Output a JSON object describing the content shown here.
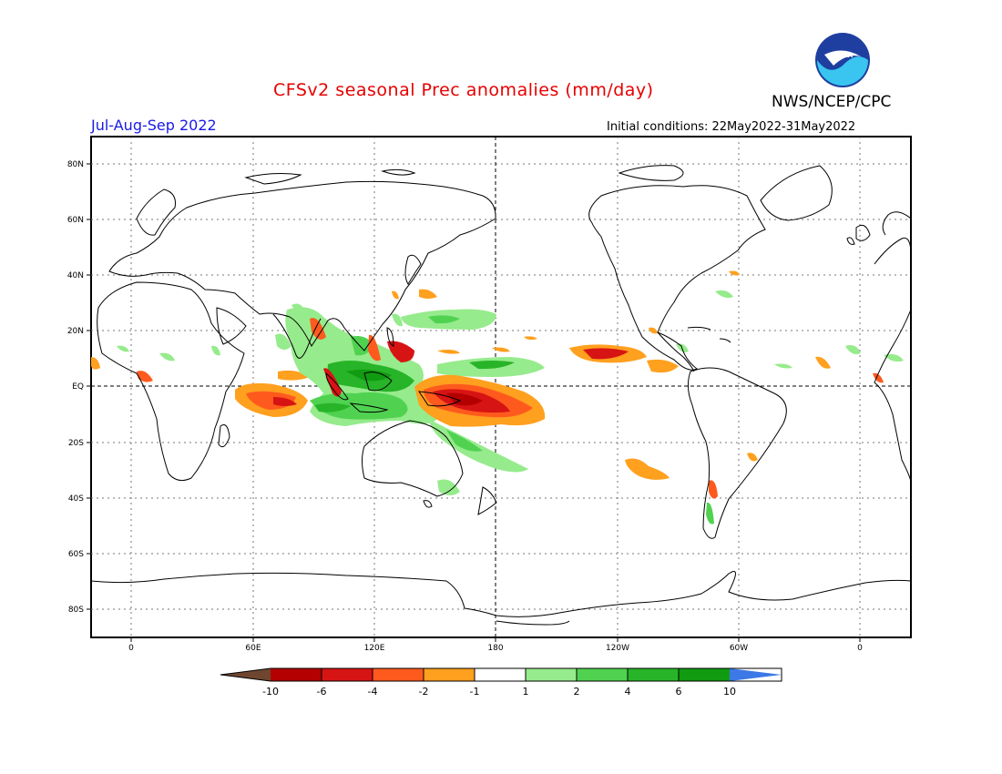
{
  "title": "CFSv2 seasonal Prec anomalies (mm/day)",
  "org": "NWS/NCEP/CPC",
  "logo_text": "NOAA",
  "period": "Jul-Aug-Sep 2022",
  "initial_conditions": "Initial conditions: 22May2022-31May2022",
  "lat_labels": [
    "80N",
    "60N",
    "40N",
    "20N",
    "EQ",
    "20S",
    "40S",
    "60S",
    "80S"
  ],
  "lon_labels": [
    "0",
    "60E",
    "120E",
    "180",
    "120W",
    "60W",
    "0"
  ],
  "colorbar": {
    "labels": [
      "-10",
      "-6",
      "-4",
      "-2",
      "-1",
      "1",
      "2",
      "4",
      "6",
      "10"
    ],
    "colors": [
      "#6e4630",
      "#b40000",
      "#d71414",
      "#ff5a1e",
      "#ffa01e",
      "#ffffff",
      "#96eb8c",
      "#50d250",
      "#28b428",
      "#119b11",
      "#3c78e6"
    ]
  },
  "colors": {
    "title": "#e60000",
    "period": "#1a1ae6",
    "dry_strong": "#b40000",
    "dry_mod": "#ff5a1e",
    "dry_weak": "#ffa01e",
    "wet_weak": "#96eb8c",
    "wet_mod": "#50d250",
    "wet_strong": "#119b11"
  }
}
